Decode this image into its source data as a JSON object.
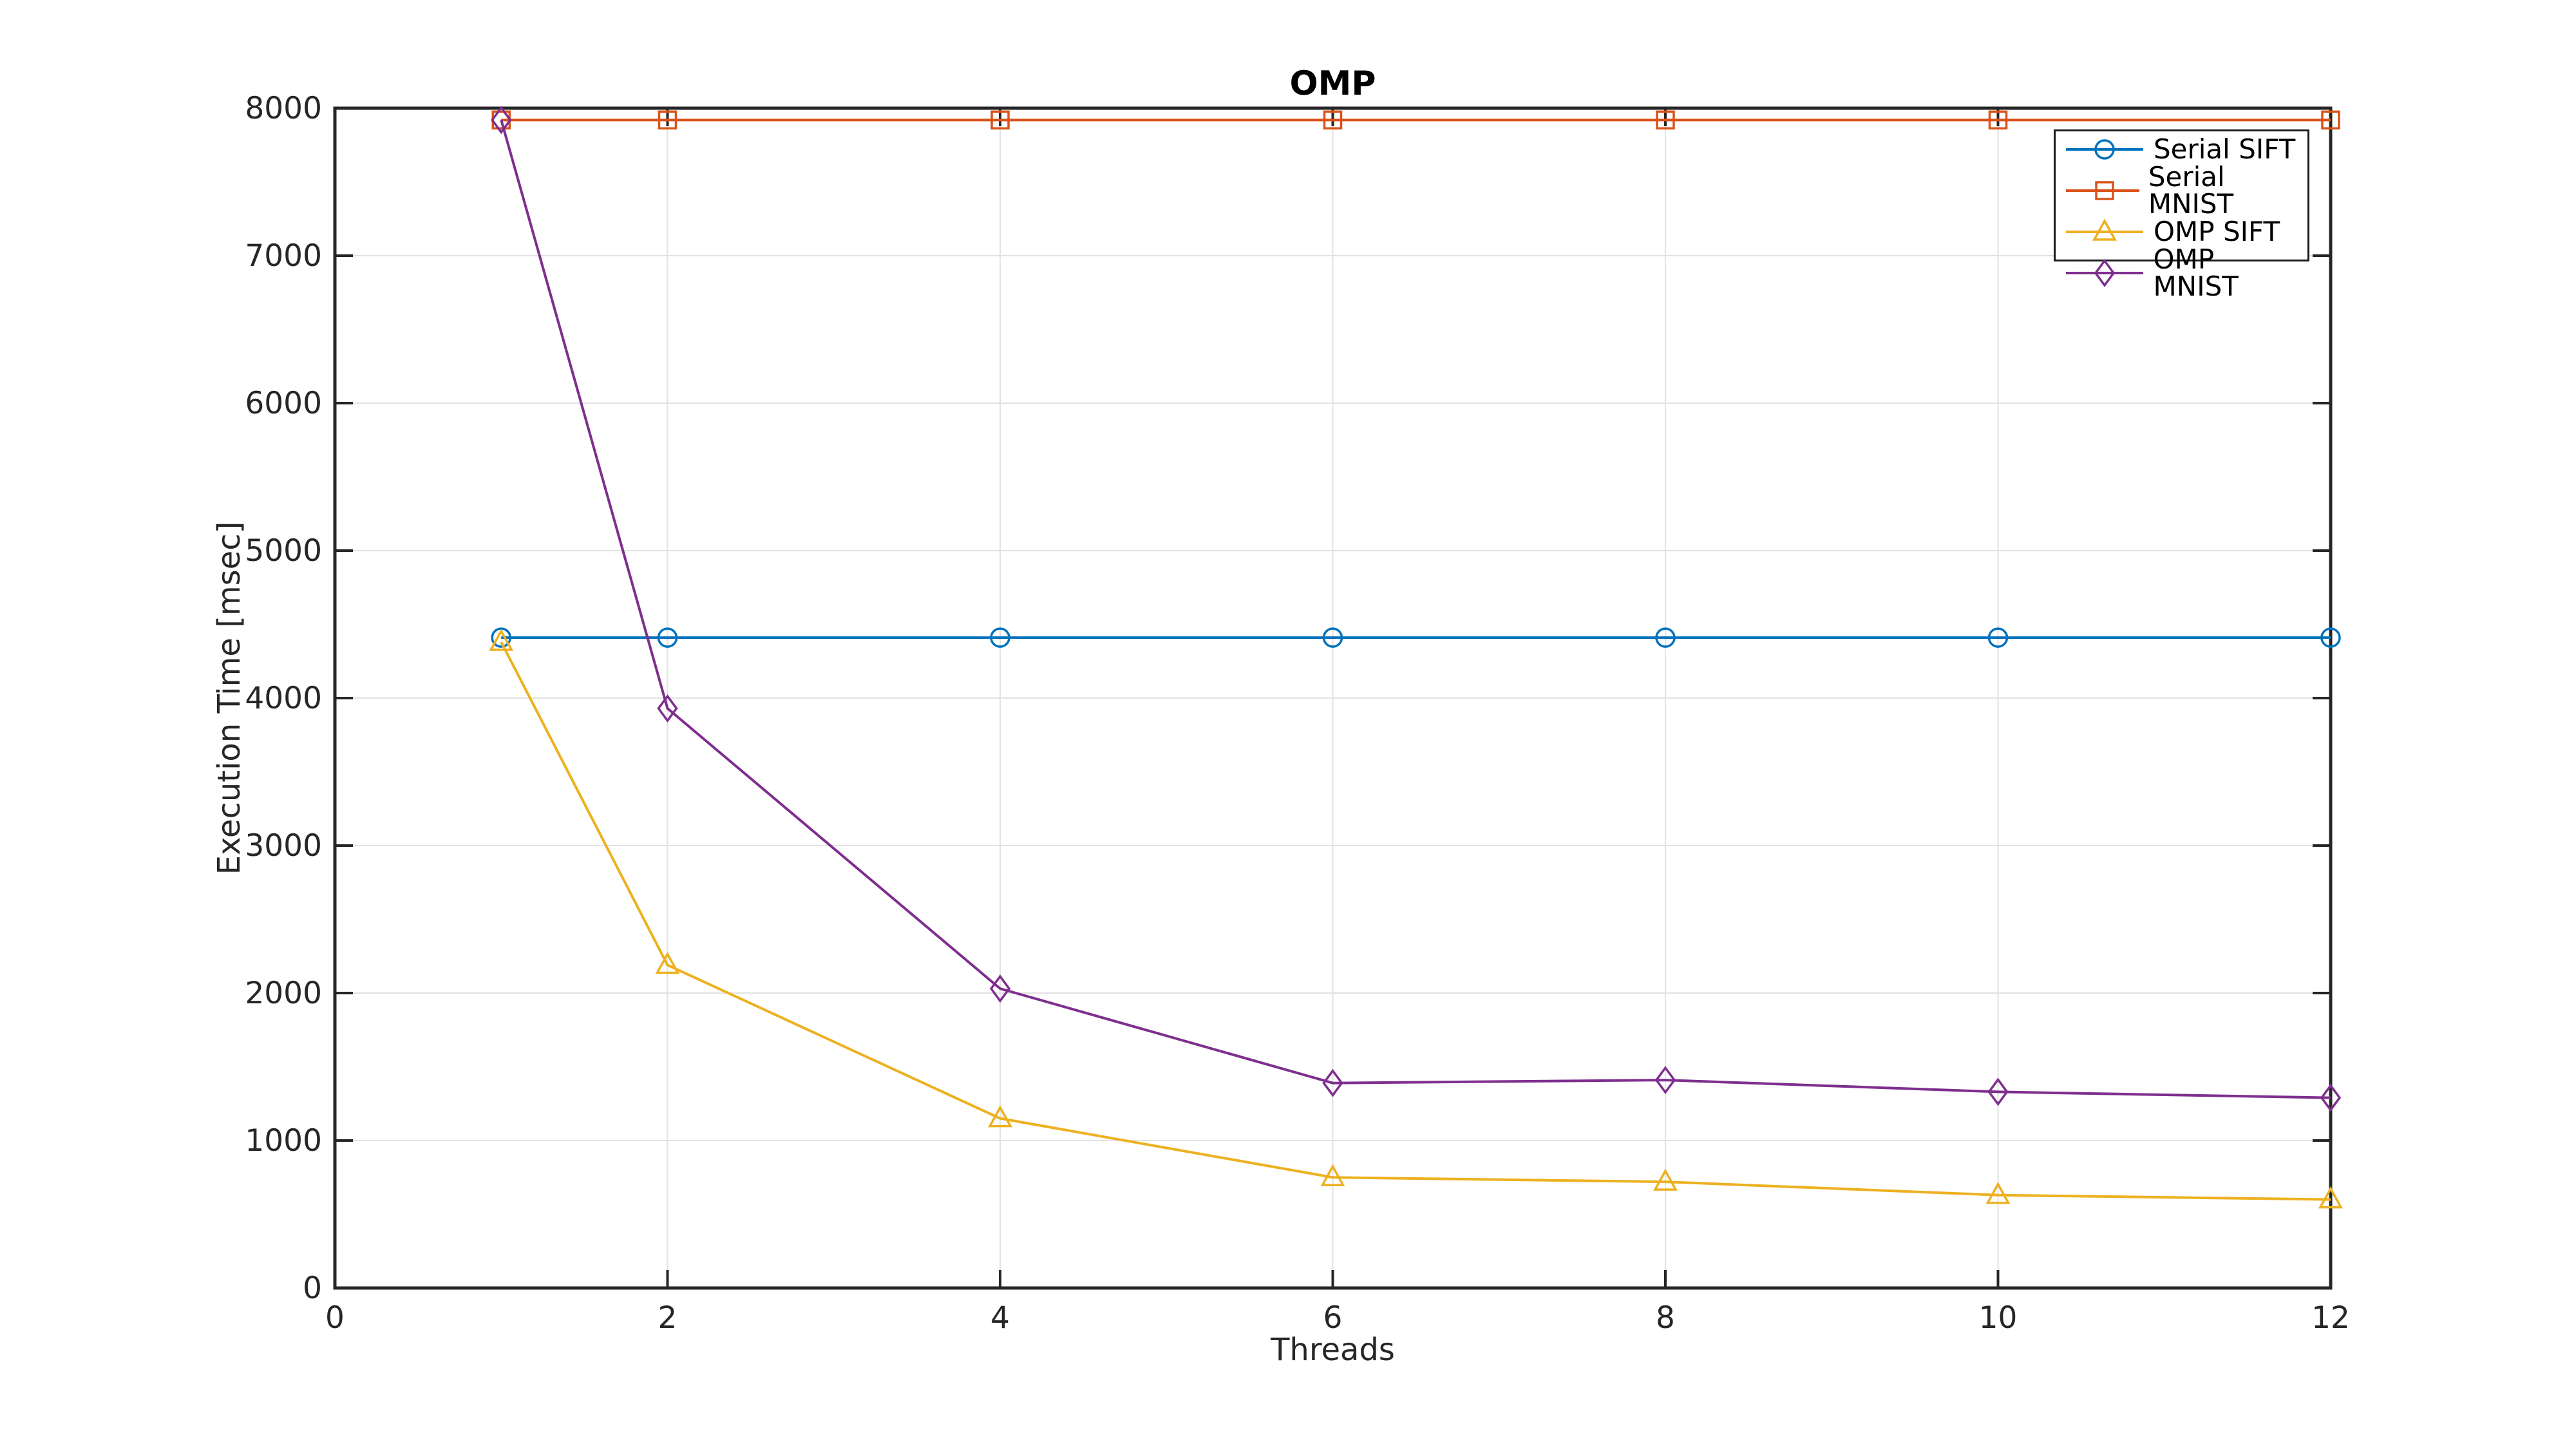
{
  "chart_data": {
    "type": "line",
    "title": "OMP",
    "xlabel": "Threads",
    "ylabel": "Execution Time [msec]",
    "xlim": [
      0,
      12
    ],
    "ylim": [
      0,
      8000
    ],
    "xticks": [
      0,
      2,
      4,
      6,
      8,
      10,
      12
    ],
    "yticks": [
      0,
      1000,
      2000,
      3000,
      4000,
      5000,
      6000,
      7000,
      8000
    ],
    "grid": true,
    "legend_position": "top-right",
    "axis_color": "#262626",
    "grid_color": "#e2e2e2",
    "x": [
      1,
      2,
      4,
      6,
      8,
      10,
      12
    ],
    "series": [
      {
        "name": "Serial SIFT",
        "color": "#0072BD",
        "marker": "circle",
        "values": [
          4410,
          4410,
          4410,
          4410,
          4410,
          4410,
          4410
        ]
      },
      {
        "name": "Serial MNIST",
        "color": "#D95319",
        "marker": "square",
        "values": [
          7920,
          7920,
          7920,
          7920,
          7920,
          7920,
          7920
        ]
      },
      {
        "name": "OMP SIFT",
        "color": "#EDB120",
        "marker": "triangle-up",
        "values": [
          4380,
          2190,
          1150,
          750,
          720,
          630,
          600
        ]
      },
      {
        "name": "OMP MNIST",
        "color": "#7E2F8E",
        "marker": "diamond",
        "values": [
          7920,
          3930,
          2030,
          1390,
          1410,
          1330,
          1290
        ]
      }
    ]
  }
}
